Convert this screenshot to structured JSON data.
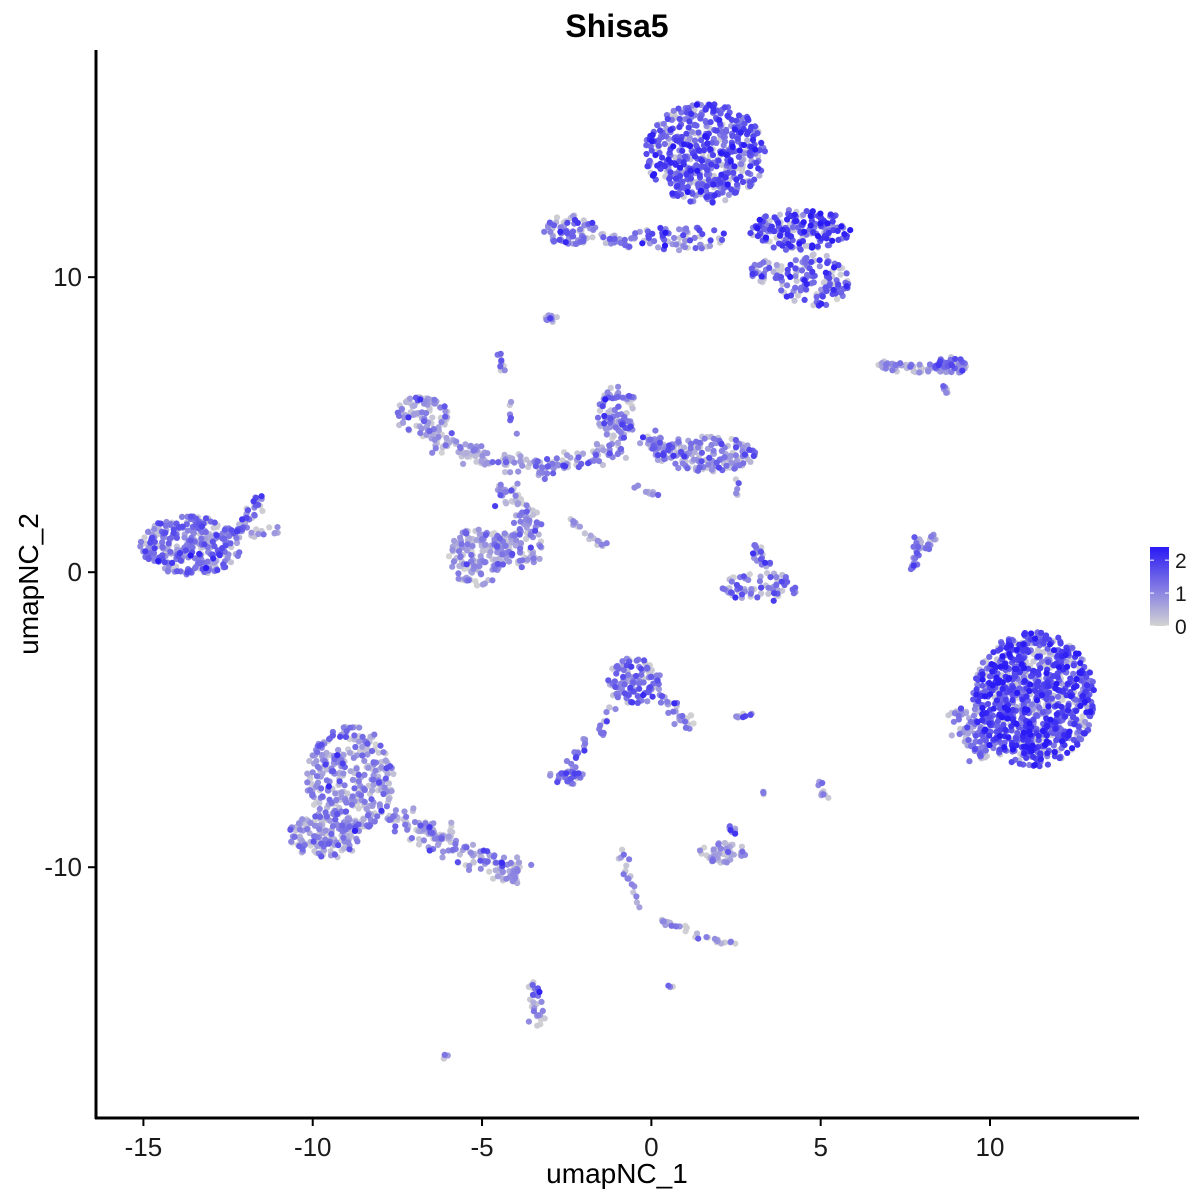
{
  "chart_data": {
    "type": "scatter",
    "title": "Shisa5",
    "xlabel": "umapNC_1",
    "ylabel": "umapNC_2",
    "xlim": [
      -16.4,
      14.4
    ],
    "ylim": [
      -18.5,
      17.7
    ],
    "xticks": [
      -15,
      -10,
      -5,
      0,
      5,
      10
    ],
    "xtick_labels": [
      "-15",
      "-10",
      "-5",
      "0",
      "5",
      "10"
    ],
    "yticks": [
      -10,
      0,
      10
    ],
    "ytick_labels": [
      "-10",
      "0",
      "10"
    ],
    "grid": false,
    "legend": {
      "placement": "right",
      "ticks": [
        2,
        1,
        0
      ],
      "labels": [
        "2",
        "1",
        "0"
      ],
      "range": [
        0,
        2.4
      ]
    },
    "colors": {
      "low": "#d3d3d3",
      "high": "#2a1af5",
      "axis": "#000000"
    },
    "clusters": [
      {
        "cx": 1.6,
        "cy": 14.2,
        "rx": 1.8,
        "ry": 1.7,
        "n": 520,
        "mean": 1.6,
        "shape": "ellipse"
      },
      {
        "cx": 4.4,
        "cy": 11.6,
        "rx": 1.5,
        "ry": 0.7,
        "n": 180,
        "mean": 1.7,
        "shape": "ellipse"
      },
      {
        "cx": 4.8,
        "cy": 9.9,
        "rx": 1.1,
        "ry": 0.9,
        "n": 120,
        "mean": 1.5,
        "shape": "ellipse"
      },
      {
        "cx": 0.8,
        "cy": 11.3,
        "rx": 1.6,
        "ry": 0.4,
        "n": 70,
        "mean": 1.3,
        "shape": "ellipse"
      },
      {
        "cx": -2.4,
        "cy": 11.6,
        "rx": 0.8,
        "ry": 0.5,
        "n": 70,
        "mean": 1.2,
        "shape": "ellipse"
      },
      {
        "x0": -1.6,
        "y0": 11.4,
        "x1": -0.6,
        "y1": 11.1,
        "w": 0.15,
        "n": 25,
        "mean": 1.1,
        "shape": "line"
      },
      {
        "cx": 3.4,
        "cy": 10.2,
        "rx": 0.5,
        "ry": 0.4,
        "n": 30,
        "mean": 1.2,
        "shape": "ellipse"
      },
      {
        "x0": 6.7,
        "y0": 7.0,
        "x1": 9.2,
        "y1": 6.9,
        "w": 0.18,
        "n": 60,
        "mean": 0.8,
        "shape": "line"
      },
      {
        "cx": 8.8,
        "cy": 7.0,
        "rx": 0.5,
        "ry": 0.3,
        "n": 30,
        "mean": 1.2,
        "shape": "ellipse"
      },
      {
        "x0": 8.5,
        "y0": 6.3,
        "x1": 8.8,
        "y1": 6.1,
        "w": 0.1,
        "n": 6,
        "mean": 1.1,
        "shape": "line"
      },
      {
        "cx": -13.6,
        "cy": 0.9,
        "rx": 1.5,
        "ry": 1.0,
        "n": 300,
        "mean": 1.2,
        "shape": "ellipse"
      },
      {
        "x0": -12.3,
        "y0": 1.2,
        "x1": -11.5,
        "y1": 2.6,
        "w": 0.2,
        "n": 40,
        "mean": 1.1,
        "shape": "line"
      },
      {
        "x0": -12.0,
        "y0": 1.3,
        "x1": -11.0,
        "y1": 1.4,
        "w": 0.15,
        "n": 12,
        "mean": 1.0,
        "shape": "line"
      },
      {
        "cx": -6.8,
        "cy": 5.3,
        "rx": 0.8,
        "ry": 0.7,
        "n": 90,
        "mean": 0.8,
        "shape": "ellipse"
      },
      {
        "x0": -6.5,
        "y0": 4.6,
        "x1": -4.9,
        "y1": 3.8,
        "w": 0.35,
        "n": 60,
        "mean": 0.7,
        "shape": "line"
      },
      {
        "x0": -5.0,
        "y0": 3.9,
        "x1": -3.4,
        "y1": 3.6,
        "w": 0.3,
        "n": 40,
        "mean": 0.6,
        "shape": "line"
      },
      {
        "cx": -1.0,
        "cy": 5.4,
        "rx": 0.6,
        "ry": 0.9,
        "n": 90,
        "mean": 1.1,
        "shape": "ellipse"
      },
      {
        "x0": -3.4,
        "y0": 3.5,
        "x1": -0.8,
        "y1": 4.2,
        "w": 0.35,
        "n": 80,
        "mean": 0.9,
        "shape": "line"
      },
      {
        "cx": 1.6,
        "cy": 4.0,
        "rx": 1.5,
        "ry": 0.6,
        "n": 170,
        "mean": 1.0,
        "shape": "ellipse"
      },
      {
        "x0": -0.3,
        "y0": 4.5,
        "x1": 0.5,
        "y1": 4.3,
        "w": 0.3,
        "n": 30,
        "mean": 1.0,
        "shape": "line"
      },
      {
        "x0": -4.4,
        "y0": 3.0,
        "x1": -3.4,
        "y1": 1.2,
        "w": 0.35,
        "n": 60,
        "mean": 0.8,
        "shape": "line"
      },
      {
        "cx": -5.1,
        "cy": 0.5,
        "rx": 0.9,
        "ry": 1.0,
        "n": 150,
        "mean": 0.7,
        "shape": "ellipse"
      },
      {
        "cx": -3.9,
        "cy": 0.8,
        "rx": 0.7,
        "ry": 0.7,
        "n": 70,
        "mean": 0.9,
        "shape": "ellipse"
      },
      {
        "x0": -2.4,
        "y0": 1.8,
        "x1": -1.4,
        "y1": 0.8,
        "w": 0.1,
        "n": 22,
        "mean": 0.5,
        "shape": "line"
      },
      {
        "x0": -4.5,
        "y0": 7.4,
        "x1": -4.4,
        "y1": 6.8,
        "w": 0.1,
        "n": 10,
        "mean": 1.1,
        "shape": "line"
      },
      {
        "x0": -4.2,
        "y0": 6.0,
        "x1": -4.0,
        "y1": 4.5,
        "w": 0.1,
        "n": 6,
        "mean": 1.0,
        "shape": "line"
      },
      {
        "cx": -2.9,
        "cy": 8.6,
        "rx": 0.3,
        "ry": 0.15,
        "n": 10,
        "mean": 0.9,
        "shape": "ellipse"
      },
      {
        "x0": -0.6,
        "y0": 2.9,
        "x1": 0.2,
        "y1": 2.6,
        "w": 0.12,
        "n": 10,
        "mean": 0.9,
        "shape": "line"
      },
      {
        "x0": 2.6,
        "y0": 3.2,
        "x1": 2.5,
        "y1": 2.4,
        "w": 0.1,
        "n": 6,
        "mean": 1.0,
        "shape": "line"
      },
      {
        "cx": 3.3,
        "cy": -0.5,
        "rx": 1.2,
        "ry": 0.5,
        "n": 70,
        "mean": 1.2,
        "shape": "ellipse"
      },
      {
        "x0": 3.0,
        "y0": 0.9,
        "x1": 3.4,
        "y1": 0.2,
        "w": 0.2,
        "n": 20,
        "mean": 1.1,
        "shape": "line"
      },
      {
        "x0": 7.9,
        "y0": 1.2,
        "x1": 7.7,
        "y1": 0.0,
        "w": 0.12,
        "n": 25,
        "mean": 1.1,
        "shape": "line"
      },
      {
        "x0": 8.4,
        "y0": 1.3,
        "x1": 8.0,
        "y1": 0.6,
        "w": 0.12,
        "n": 15,
        "mean": 1.0,
        "shape": "line"
      },
      {
        "cx": 11.3,
        "cy": -4.3,
        "rx": 1.8,
        "ry": 2.3,
        "n": 950,
        "mean": 1.7,
        "shape": "ellipse"
      },
      {
        "x0": 9.1,
        "y0": -4.6,
        "x1": 9.8,
        "y1": -6.3,
        "w": 0.4,
        "n": 80,
        "mean": 0.9,
        "shape": "line"
      },
      {
        "cx": -0.5,
        "cy": -3.7,
        "rx": 0.8,
        "ry": 0.8,
        "n": 110,
        "mean": 1.2,
        "shape": "ellipse"
      },
      {
        "x0": 0.3,
        "y0": -4.1,
        "x1": 1.2,
        "y1": -5.3,
        "w": 0.25,
        "n": 30,
        "mean": 1.1,
        "shape": "line"
      },
      {
        "x0": -1.2,
        "y0": -4.5,
        "x1": -1.5,
        "y1": -5.5,
        "w": 0.15,
        "n": 12,
        "mean": 1.1,
        "shape": "line"
      },
      {
        "x0": -1.9,
        "y0": -5.7,
        "x1": -2.6,
        "y1": -6.9,
        "w": 0.2,
        "n": 18,
        "mean": 1.1,
        "shape": "line"
      },
      {
        "cx": -2.5,
        "cy": -6.9,
        "rx": 0.5,
        "ry": 0.3,
        "n": 30,
        "mean": 1.3,
        "shape": "ellipse"
      },
      {
        "x0": 2.5,
        "y0": -4.9,
        "x1": 3.0,
        "y1": -4.8,
        "w": 0.1,
        "n": 8,
        "mean": 1.2,
        "shape": "line"
      },
      {
        "cx": -8.9,
        "cy": -7.0,
        "rx": 1.3,
        "ry": 1.8,
        "n": 330,
        "mean": 0.9,
        "shape": "ellipse"
      },
      {
        "cx": -9.6,
        "cy": -8.9,
        "rx": 1.1,
        "ry": 0.8,
        "n": 140,
        "mean": 0.9,
        "shape": "ellipse"
      },
      {
        "x0": -7.8,
        "y0": -8.2,
        "x1": -3.8,
        "y1": -10.4,
        "w": 0.45,
        "n": 170,
        "mean": 1.0,
        "shape": "line"
      },
      {
        "cx": 2.1,
        "cy": -9.5,
        "rx": 0.7,
        "ry": 0.35,
        "n": 50,
        "mean": 0.6,
        "shape": "ellipse"
      },
      {
        "x0": 2.3,
        "y0": -8.6,
        "x1": 2.5,
        "y1": -9.0,
        "w": 0.1,
        "n": 8,
        "mean": 1.0,
        "shape": "line"
      },
      {
        "x0": -0.9,
        "y0": -9.4,
        "x1": -0.3,
        "y1": -11.6,
        "w": 0.15,
        "n": 18,
        "mean": 0.8,
        "shape": "line"
      },
      {
        "x0": 0.3,
        "y0": -11.8,
        "x1": 2.5,
        "y1": -12.7,
        "w": 0.15,
        "n": 30,
        "mean": 0.7,
        "shape": "line"
      },
      {
        "x0": -3.5,
        "y0": -13.9,
        "x1": -3.3,
        "y1": -15.4,
        "w": 0.2,
        "n": 30,
        "mean": 1.0,
        "shape": "line"
      },
      {
        "x0": 4.9,
        "y0": -7.0,
        "x1": 5.1,
        "y1": -7.7,
        "w": 0.12,
        "n": 10,
        "mean": 0.9,
        "shape": "line"
      },
      {
        "x0": 3.3,
        "y0": -7.4,
        "x1": 3.3,
        "y1": -7.7,
        "w": 0.1,
        "n": 4,
        "mean": 1.0,
        "shape": "line"
      },
      {
        "x0": -6.2,
        "y0": -16.5,
        "x1": -6.0,
        "y1": -16.3,
        "w": 0.05,
        "n": 4,
        "mean": 1.2,
        "shape": "line"
      },
      {
        "x0": 0.5,
        "y0": -14.0,
        "x1": 0.6,
        "y1": -14.1,
        "w": 0.05,
        "n": 4,
        "mean": 1.0,
        "shape": "line"
      }
    ]
  }
}
